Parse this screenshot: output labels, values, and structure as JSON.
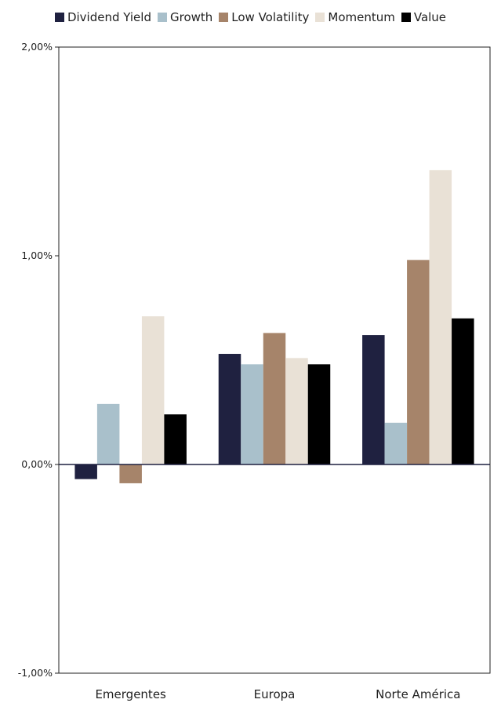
{
  "chart_data": {
    "type": "bar",
    "categories": [
      "Emergentes",
      "Europa",
      "Norte América"
    ],
    "series": [
      {
        "name": "Dividend Yield",
        "color": "#1f2140",
        "values": [
          -0.07,
          0.53,
          0.62
        ]
      },
      {
        "name": "Growth",
        "color": "#a9c0cb",
        "values": [
          0.29,
          0.48,
          0.2
        ]
      },
      {
        "name": "Low Volatility",
        "color": "#a6846a",
        "values": [
          -0.09,
          0.63,
          0.98
        ]
      },
      {
        "name": "Momentum",
        "color": "#e9e1d6",
        "values": [
          0.71,
          0.51,
          1.41
        ]
      },
      {
        "name": "Value",
        "color": "#000000",
        "values": [
          0.24,
          0.48,
          0.7
        ]
      }
    ],
    "ylim": [
      -1,
      2
    ],
    "yticks": [
      -1,
      0,
      1,
      2
    ],
    "ytick_labels": [
      "-1,00%",
      "0,00%",
      "1,00%",
      "2,00%"
    ],
    "legend_position": "top",
    "grid": false
  }
}
